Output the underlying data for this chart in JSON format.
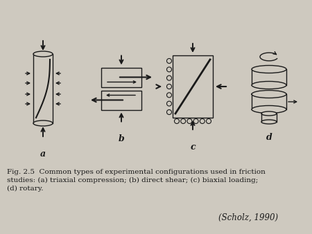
{
  "background_color": "#cec9bf",
  "line_color": "#1a1a1a",
  "caption_text": "Fig. 2.5  Common types of experimental configurations used in friction\nstudies: (a) triaxial compression; (b) direct shear; (c) biaxial loading;\n(d) rotary.",
  "citation_text": "(Scholz, 1990)",
  "label_a": "a",
  "label_b": "b",
  "label_c": "c",
  "label_d": "d",
  "caption_fontsize": 7.5,
  "label_fontsize": 9,
  "citation_fontsize": 8.5,
  "fig_width": 4.5,
  "fig_height": 3.38,
  "dpi": 100
}
